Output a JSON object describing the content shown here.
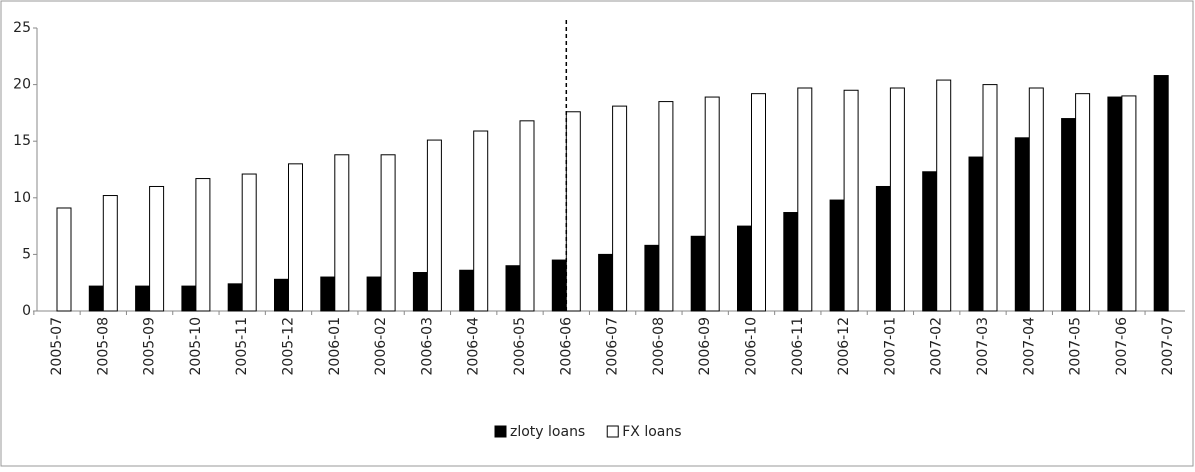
{
  "chart_data": {
    "type": "bar",
    "categories": [
      "2005-07",
      "2005-08",
      "2005-09",
      "2005-10",
      "2005-11",
      "2005-12",
      "2006-01",
      "2006-02",
      "2006-03",
      "2006-04",
      "2006-05",
      "2006-06",
      "2006-07",
      "2006-08",
      "2006-09",
      "2006-10",
      "2006-11",
      "2006-12",
      "2007-01",
      "2007-02",
      "2007-03",
      "2007-04",
      "2007-05",
      "2007-06",
      "2007-07"
    ],
    "series": [
      {
        "name": "zloty loans",
        "color": "#000000",
        "values": [
          null,
          2.2,
          2.2,
          2.2,
          2.4,
          2.8,
          3.0,
          3.0,
          3.4,
          3.6,
          4.0,
          4.5,
          5.0,
          5.8,
          6.6,
          7.5,
          8.7,
          9.8,
          11.0,
          12.3,
          13.6,
          15.3,
          17.0,
          18.9,
          20.8
        ]
      },
      {
        "name": "FX loans",
        "color": "#ffffff",
        "values": [
          9.1,
          10.2,
          11.0,
          11.7,
          12.1,
          13.0,
          13.8,
          13.8,
          15.1,
          15.9,
          16.8,
          17.6,
          18.1,
          18.5,
          18.9,
          19.2,
          19.7,
          19.5,
          19.7,
          20.4,
          20.0,
          19.7,
          19.2,
          19.0,
          null
        ]
      }
    ],
    "ylim": [
      0,
      25
    ],
    "yticks": [
      0,
      5,
      10,
      15,
      20,
      25
    ],
    "grid": false
  }
}
